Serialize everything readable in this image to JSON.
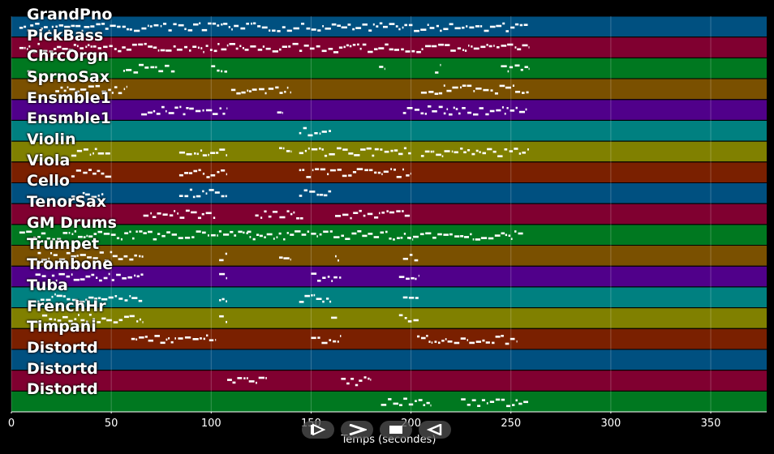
{
  "window": {
    "background": "#000000"
  },
  "chart_data": {
    "type": "piano-roll",
    "xlabel": "Temps (secondes)",
    "xlim": [
      0,
      378
    ],
    "xticks": [
      0,
      50,
      100,
      150,
      200,
      250,
      300,
      350
    ],
    "grid": true,
    "lanes": [
      {
        "name": "GrandPno",
        "color": "#005080",
        "segments": [
          [
            4,
            259
          ]
        ]
      },
      {
        "name": "PickBass",
        "color": "#800030",
        "segments": [
          [
            4,
            259
          ]
        ]
      },
      {
        "name": "ChrcOrgn",
        "color": "#007820",
        "segments": [
          [
            8,
            10
          ],
          [
            56,
            82
          ],
          [
            100,
            108
          ],
          [
            184,
            187
          ],
          [
            212,
            215
          ],
          [
            245,
            259
          ]
        ]
      },
      {
        "name": "SprnoSax",
        "color": "#7a5000",
        "segments": [
          [
            22,
            58
          ],
          [
            110,
            140
          ],
          [
            205,
            259
          ]
        ]
      },
      {
        "name": "Ensmble1",
        "color": "#50008a",
        "segments": [
          [
            65,
            108
          ],
          [
            133,
            136
          ],
          [
            196,
            258
          ]
        ]
      },
      {
        "name": "Ensmble1",
        "color": "#008080",
        "segments": [
          [
            144,
            160
          ]
        ]
      },
      {
        "name": "Violin",
        "color": "#808000",
        "segments": [
          [
            30,
            50
          ],
          [
            84,
            108
          ],
          [
            134,
            140
          ],
          [
            144,
            200
          ],
          [
            205,
            259
          ]
        ]
      },
      {
        "name": "Viola",
        "color": "#7a2000",
        "segments": [
          [
            30,
            50
          ],
          [
            84,
            108
          ],
          [
            144,
            200
          ]
        ]
      },
      {
        "name": "Cello",
        "color": "#005080",
        "segments": [
          [
            30,
            46
          ],
          [
            84,
            108
          ],
          [
            144,
            160
          ]
        ]
      },
      {
        "name": "TenorSax",
        "color": "#800030",
        "segments": [
          [
            66,
            102
          ],
          [
            122,
            146
          ],
          [
            162,
            200
          ]
        ]
      },
      {
        "name": "GM Drums",
        "color": "#007820",
        "segments": [
          [
            4,
            256
          ],
          [
            118,
            120
          ],
          [
            199,
            201
          ]
        ]
      },
      {
        "name": "Trumpet",
        "color": "#7a5000",
        "segments": [
          [
            12,
            66
          ],
          [
            104,
            108
          ],
          [
            134,
            140
          ],
          [
            162,
            164
          ],
          [
            196,
            204
          ]
        ]
      },
      {
        "name": "Trombone",
        "color": "#50008a",
        "segments": [
          [
            12,
            66
          ],
          [
            104,
            108
          ],
          [
            150,
            165
          ],
          [
            194,
            204
          ]
        ]
      },
      {
        "name": "Tuba",
        "color": "#008080",
        "segments": [
          [
            12,
            66
          ],
          [
            104,
            108
          ],
          [
            144,
            160
          ],
          [
            196,
            204
          ]
        ]
      },
      {
        "name": "FrenchHr",
        "color": "#808000",
        "segments": [
          [
            12,
            66
          ],
          [
            104,
            108
          ],
          [
            160,
            163
          ],
          [
            194,
            204
          ]
        ]
      },
      {
        "name": "Timpani",
        "color": "#7a2000",
        "segments": [
          [
            60,
            102
          ],
          [
            150,
            165
          ],
          [
            203,
            253
          ]
        ]
      },
      {
        "name": "Distortd",
        "color": "#005080",
        "segments": []
      },
      {
        "name": "Distortd",
        "color": "#800030",
        "segments": [
          [
            108,
            128
          ],
          [
            165,
            180
          ]
        ]
      },
      {
        "name": "Distortd",
        "color": "#007820",
        "segments": [
          [
            185,
            210
          ],
          [
            225,
            259
          ]
        ]
      }
    ]
  },
  "controls": [
    {
      "name": "rewind",
      "icon": "rewind-icon"
    },
    {
      "name": "play",
      "icon": "play-icon"
    },
    {
      "name": "stop",
      "icon": "stop-icon"
    },
    {
      "name": "reverse",
      "icon": "reverse-icon"
    }
  ]
}
